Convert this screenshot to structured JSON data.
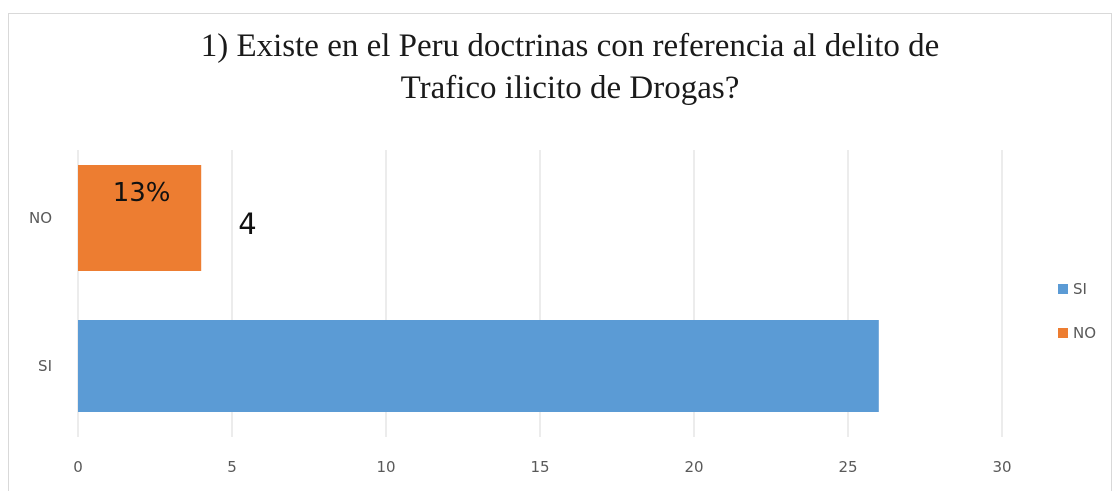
{
  "chart_data": {
    "type": "bar",
    "orientation": "horizontal",
    "title_lines": [
      "1) Existe en el Peru doctrinas con referencia al delito de",
      "Trafico ilicito de Drogas?"
    ],
    "categories": [
      "NO",
      "SI"
    ],
    "series": [
      {
        "name": "NO",
        "category": "NO",
        "value": 4,
        "color": "#ed7d31"
      },
      {
        "name": "SI",
        "category": "SI",
        "value": 26,
        "color": "#5b9bd5"
      }
    ],
    "data_labels": [
      {
        "category": "NO",
        "percent_text": "13%",
        "value_text": "4"
      }
    ],
    "xticks": [
      "0",
      "5",
      "10",
      "15",
      "20",
      "25",
      "30"
    ],
    "xlim": [
      0,
      30
    ],
    "grid": true,
    "legend": {
      "placement": "right",
      "entries": [
        {
          "label": "SI",
          "color": "#5b9bd5"
        },
        {
          "label": "NO",
          "color": "#ed7d31"
        }
      ]
    },
    "gridline_color": "#d9d9d9"
  }
}
